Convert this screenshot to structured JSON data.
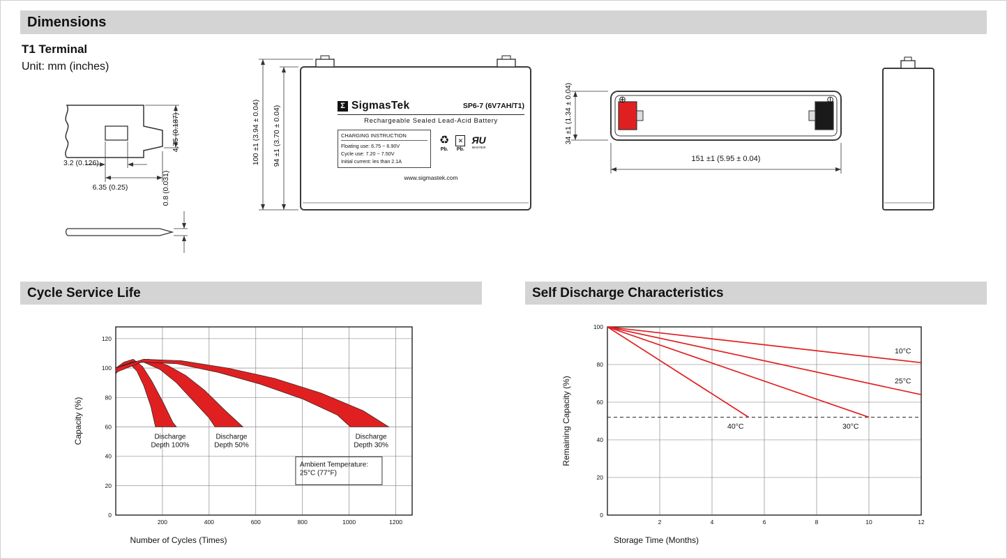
{
  "page": {
    "title": "Dimensions",
    "terminal_type": "T1 Terminal",
    "unit_note": "Unit: mm (inches)",
    "section_cycle": "Cycle Service Life",
    "section_self_discharge": "Self Discharge Characteristics"
  },
  "dimensions": {
    "terminal_height": "4.75 (0.187)",
    "terminal_slot": "3.2 (0.126)",
    "terminal_width": "6.35 (0.25)",
    "terminal_thickness": "0.8 (0.031)",
    "battery_total_height": "100 ±1 (3.94 ± 0.04)",
    "battery_case_height": "94 ±1 (3.70 ± 0.04)",
    "battery_length": "151 ±1 (5.95 ± 0.04)",
    "battery_width": "34 ±1 (1.34 ± 0.04)",
    "polarity_positive": "⊕",
    "polarity_negative": "⊖"
  },
  "battery_label": {
    "sigma": "Σ",
    "brand": "SigmasTek",
    "model": "SP6-7 (6V7AH/T1)",
    "subtitle": "Rechargeable Sealed Lead-Acid Battery",
    "charging_title": "CHARGING INSTRUCTION",
    "charging_lines": [
      "Floating use: 6.75 ~ 6.90V",
      "Cycle use: 7.20 ~ 7.50V",
      "Initial current: les than 2.1A"
    ],
    "recycle_icon": "♻",
    "pb_label": "Pb.",
    "bin_icon": "✕",
    "ul_mark": "ЯU",
    "ul_code": "MH47929",
    "website": "www.sigmastek.com"
  },
  "chart_data": [
    {
      "type": "area",
      "title": "Cycle Service Life",
      "xlabel": "Number of Cycles (Times)",
      "ylabel": "Capacity (%)",
      "xlim": [
        0,
        1270
      ],
      "ylim": [
        0,
        128
      ],
      "xticks": [
        200,
        400,
        600,
        800,
        1000,
        1200
      ],
      "yticks": [
        0,
        20,
        40,
        60,
        80,
        100,
        120
      ],
      "grid": true,
      "legend_position": "none",
      "color": "#e02020",
      "bands": [
        {
          "name": "Discharge Depth 100%",
          "upper": [
            [
              0,
              100
            ],
            [
              35,
              104
            ],
            [
              75,
              106
            ],
            [
              115,
              101
            ],
            [
              155,
              91
            ],
            [
              205,
              76
            ],
            [
              245,
              63
            ],
            [
              260,
              60
            ]
          ],
          "lower": [
            [
              0,
              96
            ],
            [
              30,
              102
            ],
            [
              60,
              103
            ],
            [
              90,
              98
            ],
            [
              120,
              88
            ],
            [
              150,
              74
            ],
            [
              170,
              60
            ]
          ]
        },
        {
          "name": "Discharge Depth 50%",
          "upper": [
            [
              0,
              100
            ],
            [
              70,
              104
            ],
            [
              140,
              106
            ],
            [
              220,
              102
            ],
            [
              300,
              95
            ],
            [
              380,
              85
            ],
            [
              470,
              71
            ],
            [
              545,
              60
            ]
          ],
          "lower": [
            [
              0,
              97
            ],
            [
              60,
              103
            ],
            [
              120,
              104
            ],
            [
              190,
              99
            ],
            [
              260,
              90
            ],
            [
              330,
              78
            ],
            [
              400,
              66
            ],
            [
              425,
              60
            ]
          ]
        },
        {
          "name": "Discharge Depth 30%",
          "upper": [
            [
              0,
              100
            ],
            [
              120,
              106
            ],
            [
              280,
              105
            ],
            [
              480,
              100
            ],
            [
              680,
              93
            ],
            [
              880,
              83
            ],
            [
              1060,
              71
            ],
            [
              1170,
              60
            ]
          ],
          "lower": [
            [
              0,
              97
            ],
            [
              110,
              104
            ],
            [
              260,
              103
            ],
            [
              440,
              97
            ],
            [
              620,
              89
            ],
            [
              800,
              79
            ],
            [
              950,
              68
            ],
            [
              1005,
              60
            ]
          ]
        }
      ],
      "annotations": [
        {
          "text": "Discharge\nDepth 100%",
          "x": 233,
          "y": 52
        },
        {
          "text": "Discharge\nDepth 50%",
          "x": 496,
          "y": 52
        },
        {
          "text": "Discharge\nDepth 30%",
          "x": 1094,
          "y": 52
        },
        {
          "text": "Ambient Temperature:\n25°C (77°F)",
          "x": 956,
          "y": 33,
          "box": true
        }
      ]
    },
    {
      "type": "line",
      "title": "Self Discharge Characteristics",
      "xlabel": "Storage Time (Months)",
      "ylabel": "Remaining Capacity (%)",
      "xlim": [
        0,
        12
      ],
      "ylim": [
        0,
        100
      ],
      "xticks": [
        2,
        4,
        6,
        8,
        10,
        12
      ],
      "yticks": [
        0,
        20,
        40,
        60,
        80,
        100
      ],
      "grid": true,
      "legend_position": "inline",
      "color": "#e02020",
      "dashed_line_y": 52,
      "series": [
        {
          "name": "10°C",
          "points": [
            [
              0,
              100
            ],
            [
              12,
              81
            ]
          ],
          "label_at": [
            11.3,
            86
          ]
        },
        {
          "name": "25°C",
          "points": [
            [
              0,
              100
            ],
            [
              12,
              64
            ]
          ],
          "label_at": [
            11.3,
            70
          ]
        },
        {
          "name": "30°C",
          "points": [
            [
              0,
              100
            ],
            [
              10,
              52
            ]
          ],
          "label_at": [
            9.3,
            46
          ]
        },
        {
          "name": "40°C",
          "points": [
            [
              0,
              100
            ],
            [
              5.4,
              52
            ]
          ],
          "label_at": [
            4.9,
            46
          ]
        }
      ]
    }
  ]
}
